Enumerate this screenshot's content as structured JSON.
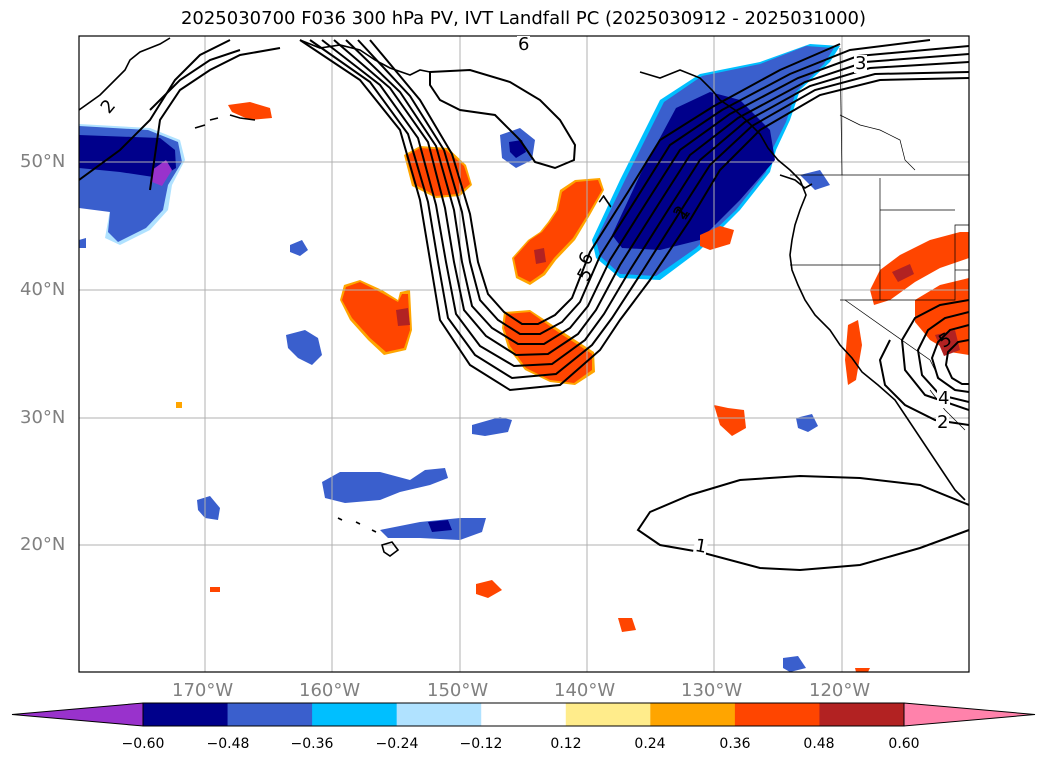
{
  "title": "2025030700 F036 300 hPa PV, IVT Landfall PC (2025030912 - 2025031000)",
  "lat_labels": [
    "50°N",
    "40°N",
    "30°N",
    "20°N"
  ],
  "lon_labels": [
    "170°W",
    "160°W",
    "150°W",
    "140°W",
    "130°W",
    "120°W"
  ],
  "colorbar": {
    "ticks": [
      "−0.60",
      "−0.48",
      "−0.36",
      "−0.24",
      "−0.12",
      "0.12",
      "0.24",
      "0.36",
      "0.48",
      "0.60"
    ],
    "colors": [
      "#9932cc",
      "#00008b",
      "#3a5fcd",
      "#00bfff",
      "#b0e2ff",
      "#ffffff",
      "#ffec8b",
      "#ffa500",
      "#ff4500",
      "#b22222",
      "#ff82ab"
    ]
  },
  "contour_labels": [
    "6",
    "3",
    "2",
    "7",
    "5",
    "6",
    "2",
    "1",
    "5",
    "4",
    "2",
    "1"
  ],
  "colors": {
    "land_line": "#000000",
    "grid": "#b0b0b0",
    "contour": "#000000"
  }
}
